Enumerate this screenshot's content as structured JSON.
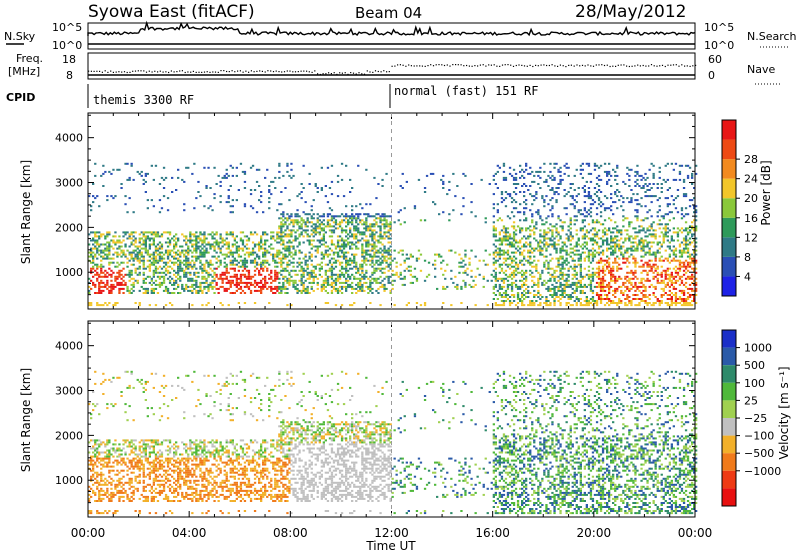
{
  "header": {
    "station": "Syowa East (fitACF)",
    "beam": "Beam 04",
    "date": "28/May/2012"
  },
  "top_panels": {
    "nsky": {
      "label": "N.Sky",
      "tick_high": "10^5",
      "tick_low": "10^0",
      "right_label": "N.Search",
      "right_tick_high": "10^5",
      "right_tick_low": "10^0"
    },
    "freq": {
      "label_line1": "Freq.",
      "label_line2": "[MHz]",
      "ticks_left": [
        "18",
        "8"
      ],
      "ticks_right": [
        "60",
        "0"
      ],
      "right_label": "Nave"
    },
    "cpid": {
      "label": "CPID",
      "segments": [
        {
          "name": "themis 3300 RF",
          "start_hour": 0
        },
        {
          "name": "normal (fast) 151 RF",
          "start_hour": 12
        }
      ]
    }
  },
  "chart_data": [
    {
      "type": "heatmap",
      "panel": "power",
      "ylabel": "Slant Range [km]",
      "ylim": [
        180,
        4550
      ],
      "yticks": [
        1000,
        2000,
        3000,
        4000
      ],
      "xlim": [
        0,
        24
      ],
      "colorbar": {
        "label": "Power [dB]",
        "ticks": [
          "4",
          "8",
          "12",
          "16",
          "20",
          "24",
          "28"
        ],
        "colors": [
          "#1e22e6",
          "#2a4fb5",
          "#2f7a86",
          "#2e9a5a",
          "#8ac83a",
          "#f2c62a",
          "#f28a1f",
          "#ee4a14",
          "#e81616"
        ]
      },
      "x_ticks": [
        "00:00",
        "04:00",
        "08:00",
        "12:00",
        "16:00",
        "20:00",
        "00:00"
      ]
    },
    {
      "type": "heatmap",
      "panel": "velocity",
      "ylabel": "Slant Range [km]",
      "ylim": [
        180,
        4550
      ],
      "yticks": [
        1000,
        2000,
        3000,
        4000
      ],
      "xlim": [
        0,
        24
      ],
      "xlabel": "Time UT",
      "x_ticks": [
        "00:00",
        "04:00",
        "08:00",
        "12:00",
        "16:00",
        "20:00",
        "00:00"
      ],
      "colorbar": {
        "label": "Velocity [m s⁻¹]",
        "ticks": [
          "1000",
          "500",
          "100",
          "25",
          "−25",
          "−100",
          "−500",
          "−1000"
        ],
        "colors": [
          "#1a2fc8",
          "#2a5aa8",
          "#2e8a6a",
          "#4fb83a",
          "#a0d050",
          "#c0c0c0",
          "#f2b02a",
          "#f07a1a",
          "#ee3a14",
          "#e81010"
        ]
      }
    }
  ]
}
